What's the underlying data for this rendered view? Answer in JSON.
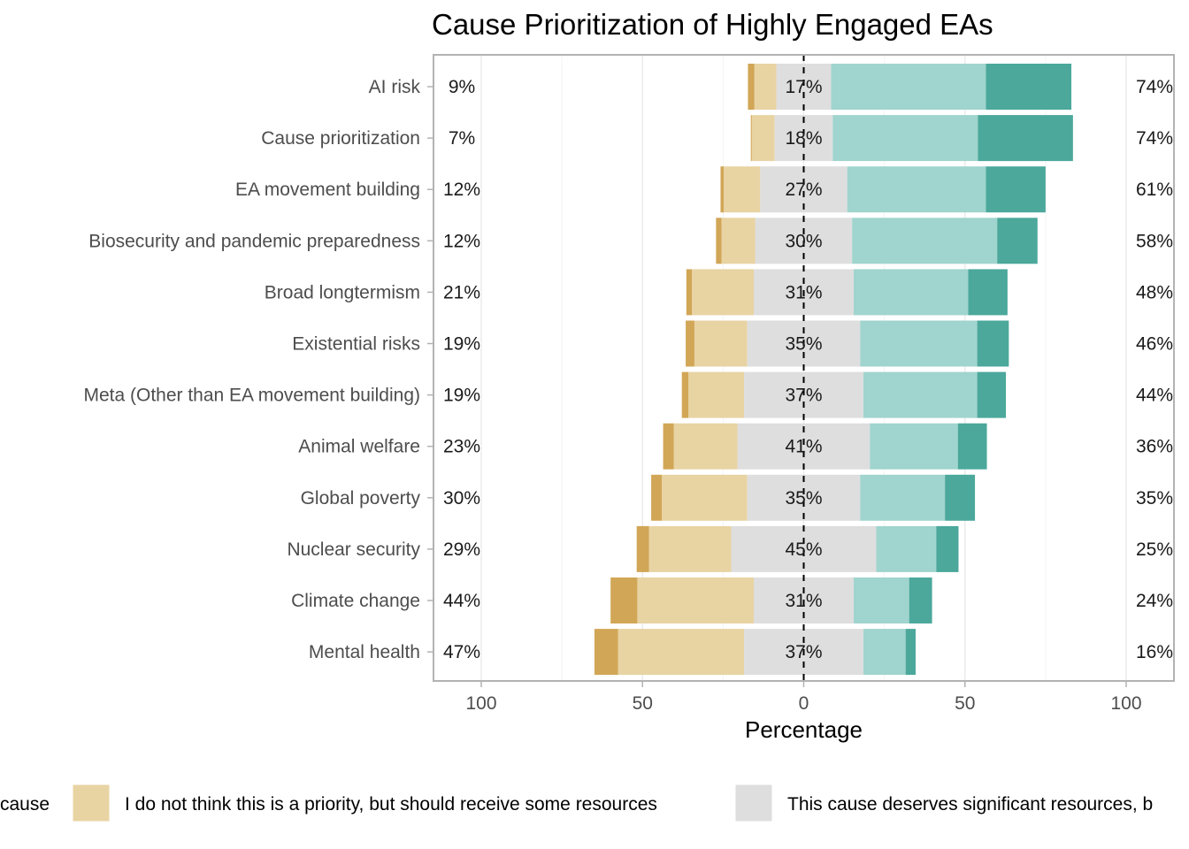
{
  "chart_data": {
    "type": "bar",
    "orientation": "horizontal-diverging",
    "title": "Cause Prioritization of Highly Engaged EAs",
    "xlabel": "Percentage",
    "ylabel": "",
    "xlim": [
      -100,
      100
    ],
    "xticks": [
      -100,
      -50,
      0,
      50,
      100
    ],
    "xtick_labels": [
      "100",
      "50",
      "0",
      "50",
      "100"
    ],
    "grid": true,
    "legend_position": "bottom",
    "categories": [
      "AI risk",
      "Cause prioritization",
      "EA movement building",
      "Biosecurity and pandemic preparedness",
      "Broad longtermism",
      "Existential risks",
      "Meta (Other than EA movement building)",
      "Animal welfare",
      "Global poverty",
      "Nuclear security",
      "Climate change",
      "Mental health"
    ],
    "series": [
      {
        "name": "cause",
        "color": "#D1A656",
        "values": [
          2,
          0.3,
          1,
          1.7,
          1.7,
          2.7,
          2,
          3.3,
          3.3,
          3.8,
          8.3,
          7.3
        ]
      },
      {
        "name": "I do not think this is a priority, but should receive some resources",
        "color": "#E8D3A3",
        "values": [
          6.8,
          7.1,
          11.3,
          10.5,
          19.2,
          16.4,
          17.3,
          19.8,
          26.5,
          25.5,
          36.1,
          39.1
        ]
      },
      {
        "name": "This cause deserves significant resources, b",
        "color": "#DEDEDE",
        "values": [
          17,
          18,
          27,
          30,
          31,
          35,
          37,
          41,
          35,
          45,
          31,
          37
        ]
      },
      {
        "name": "",
        "color": "#A0D4CE",
        "values": [
          48,
          45,
          43,
          45,
          35.5,
          36.3,
          35.3,
          27.3,
          26.3,
          18.6,
          17.2,
          13.1
        ]
      },
      {
        "name": "",
        "color": "#4BA89B",
        "values": [
          26.5,
          29.5,
          18.5,
          12.5,
          12.2,
          9.8,
          8.9,
          9,
          9.3,
          6.9,
          7.1,
          3.1
        ]
      }
    ],
    "left_totals": [
      "9%",
      "7%",
      "12%",
      "12%",
      "21%",
      "19%",
      "19%",
      "23%",
      "30%",
      "29%",
      "44%",
      "47%"
    ],
    "neutral_labels": [
      "17%",
      "18%",
      "27%",
      "30%",
      "31%",
      "35%",
      "37%",
      "41%",
      "35%",
      "45%",
      "31%",
      "37%"
    ],
    "right_totals": [
      "74%",
      "74%",
      "61%",
      "58%",
      "48%",
      "46%",
      "44%",
      "36%",
      "35%",
      "25%",
      "24%",
      "16%"
    ]
  },
  "legend": [
    {
      "label": "cause",
      "color": "#D1A656"
    },
    {
      "label": "I do not think this is a priority, but should receive some resources",
      "color": "#E8D3A3"
    },
    {
      "label": "This cause deserves significant resources, b",
      "color": "#DEDEDE"
    }
  ]
}
